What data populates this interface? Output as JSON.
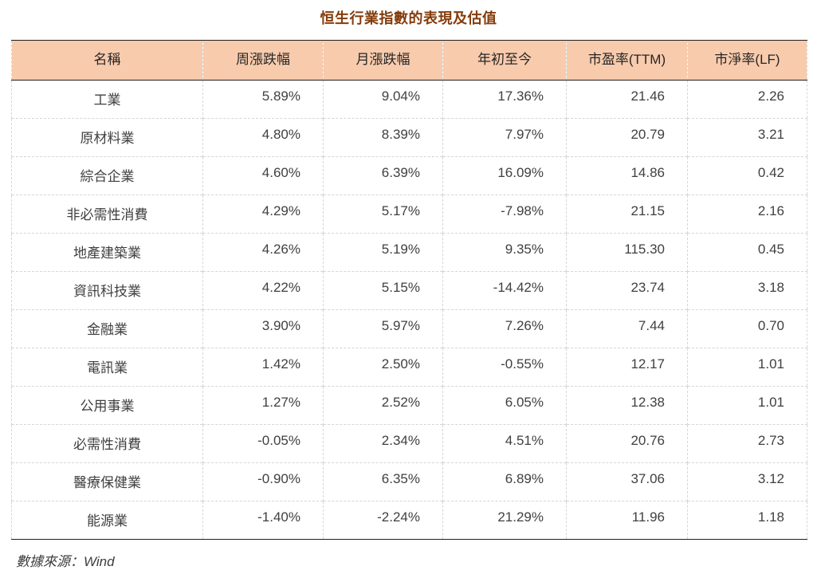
{
  "chart_data": {
    "type": "table",
    "title": "恒生行業指數的表現及估值",
    "columns": [
      "名稱",
      "周漲跌幅",
      "月漲跌幅",
      "年初至今",
      "市盈率(TTM)",
      "市淨率(LF)"
    ],
    "rows": [
      [
        "工業",
        "5.89%",
        "9.04%",
        "17.36%",
        "21.46",
        "2.26"
      ],
      [
        "原材料業",
        "4.80%",
        "8.39%",
        "7.97%",
        "20.79",
        "3.21"
      ],
      [
        "綜合企業",
        "4.60%",
        "6.39%",
        "16.09%",
        "14.86",
        "0.42"
      ],
      [
        "非必需性消費",
        "4.29%",
        "5.17%",
        "-7.98%",
        "21.15",
        "2.16"
      ],
      [
        "地產建築業",
        "4.26%",
        "5.19%",
        "9.35%",
        "115.30",
        "0.45"
      ],
      [
        "資訊科技業",
        "4.22%",
        "5.15%",
        "-14.42%",
        "23.74",
        "3.18"
      ],
      [
        "金融業",
        "3.90%",
        "5.97%",
        "7.26%",
        "7.44",
        "0.70"
      ],
      [
        "電訊業",
        "1.42%",
        "2.50%",
        "-0.55%",
        "12.17",
        "1.01"
      ],
      [
        "公用事業",
        "1.27%",
        "2.52%",
        "6.05%",
        "12.38",
        "1.01"
      ],
      [
        "必需性消費",
        "-0.05%",
        "2.34%",
        "4.51%",
        "20.76",
        "2.73"
      ],
      [
        "醫療保健業",
        "-0.90%",
        "6.35%",
        "6.89%",
        "37.06",
        "3.12"
      ],
      [
        "能源業",
        "-1.40%",
        "-2.24%",
        "21.29%",
        "11.96",
        "1.18"
      ]
    ],
    "legend": null,
    "grid": "dashed-inner-lines"
  },
  "footer": {
    "source_label": "數據來源：Wind"
  },
  "colors": {
    "title": "#843C0B",
    "header_bg": "#F8CBAD",
    "body_text": "#404040",
    "grid_dashed": "#D6D6D6",
    "rule_dark": "#1F1F1F"
  }
}
